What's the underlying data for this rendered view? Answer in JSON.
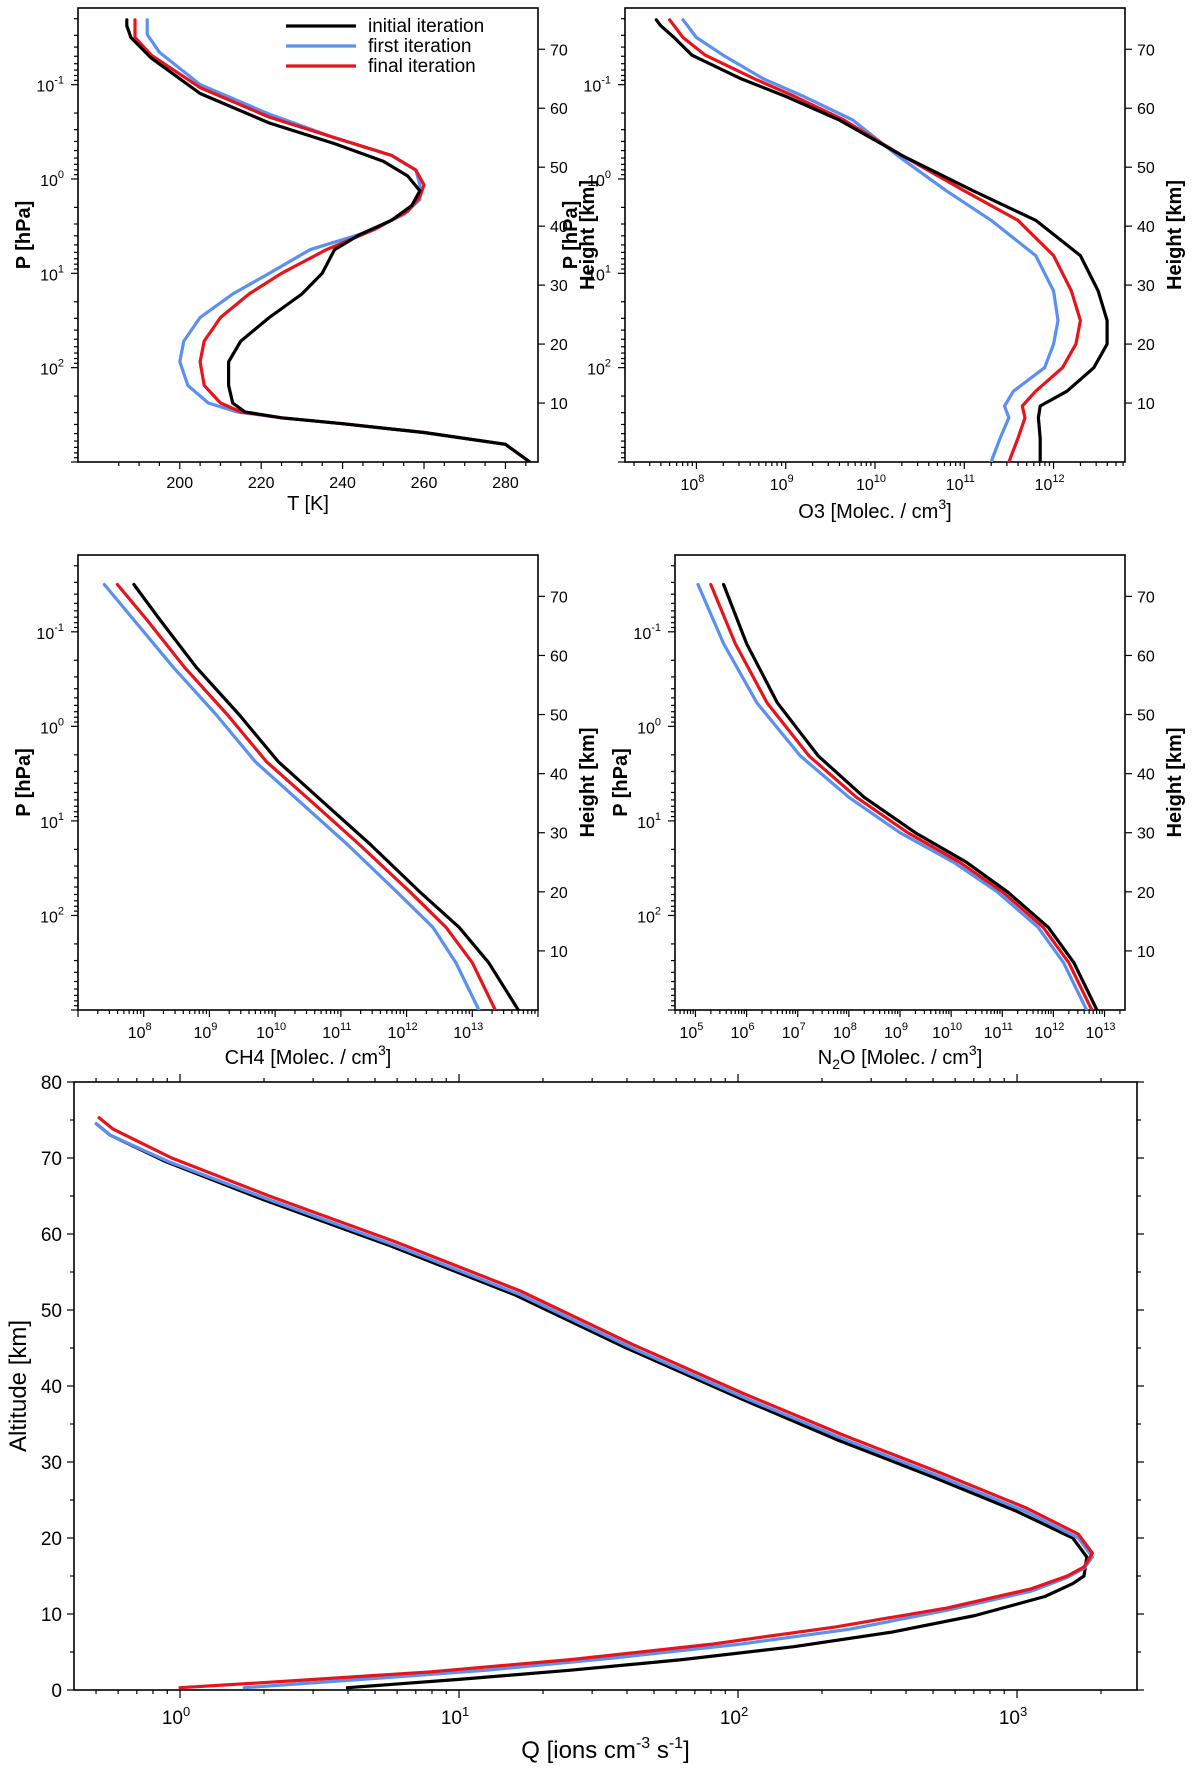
{
  "colors": {
    "initial": "#000000",
    "first": "#5b8ff0",
    "final": "#e8141c"
  },
  "legend": {
    "entries": [
      "initial iteration",
      "first iteration",
      "final iteration"
    ]
  },
  "chart_data": [
    {
      "id": "temperature",
      "type": "line",
      "xscale": "linear",
      "xlim": [
        175,
        288
      ],
      "xticks": [
        200,
        220,
        240,
        260,
        280
      ],
      "xtick_labels": [
        "200",
        "220",
        "240",
        "260",
        "280"
      ],
      "xlabel": "T [K]",
      "ylabel_left": "P [hPa]",
      "ylabel_right": "Height [km]",
      "left_ticks": [
        {
          "value": 0.1,
          "base": "10",
          "exp": "-1"
        },
        {
          "value": 1,
          "base": "10",
          "exp": "0"
        },
        {
          "value": 10,
          "base": "10",
          "exp": "1"
        },
        {
          "value": 100,
          "base": "10",
          "exp": "2"
        }
      ],
      "right_ticks": [
        10,
        20,
        30,
        40,
        50,
        60,
        70
      ],
      "height_range_km": [
        0,
        75
      ],
      "series": [
        {
          "name": "initial iteration",
          "key": "initial",
          "x": [
            286,
            280,
            260,
            240,
            225,
            216,
            213,
            212,
            212,
            215,
            222,
            230,
            235,
            238,
            244,
            252,
            257,
            259,
            256,
            250,
            238,
            222,
            205,
            193,
            188,
            187,
            187
          ],
          "h": [
            0,
            3,
            5,
            6.5,
            7.5,
            8.5,
            10,
            13,
            17,
            20.5,
            24.5,
            28.5,
            32,
            36,
            38.5,
            41,
            43.5,
            46,
            48.5,
            51,
            54,
            57.5,
            62.5,
            68.5,
            72,
            74,
            75
          ]
        },
        {
          "name": "first iteration",
          "key": "first",
          "x": [
            286,
            280,
            260,
            240,
            225,
            214,
            207,
            202,
            200,
            201,
            205,
            213,
            222,
            232,
            246,
            255,
            259,
            259,
            258,
            252,
            238,
            222,
            205,
            195,
            192,
            192,
            192
          ],
          "h": [
            0,
            3,
            5,
            6.5,
            7.5,
            8.5,
            10,
            13,
            17,
            20.5,
            24.5,
            28.5,
            32,
            36,
            39,
            42,
            44.5,
            47,
            49.5,
            52,
            55,
            59,
            64,
            69.5,
            72.5,
            74,
            75
          ]
        },
        {
          "name": "final iteration",
          "key": "final",
          "x": [
            286,
            280,
            260,
            240,
            225,
            215,
            210,
            206,
            205,
            206,
            210,
            217,
            225,
            236,
            248,
            256,
            259,
            260,
            258,
            252,
            238,
            222,
            205,
            193,
            189,
            189,
            189
          ],
          "h": [
            0,
            3,
            5,
            6.5,
            7.5,
            8.5,
            10,
            13,
            17,
            20.5,
            24.5,
            28.5,
            32,
            36,
            39.5,
            42.5,
            45,
            47,
            49.5,
            52,
            55,
            58.5,
            63.5,
            69,
            72,
            74,
            75
          ]
        }
      ]
    },
    {
      "id": "ozone",
      "type": "line",
      "xscale": "log",
      "xlim_log10": [
        7.2,
        12.8
      ],
      "xticks_exp": [
        8,
        9,
        10,
        11,
        12
      ],
      "xlabel_prefix": "O3 [Molec. / cm",
      "xlabel_sup": "3",
      "xlabel_suffix": "]",
      "ylabel_left": "P [hPa]",
      "ylabel_right": "Height [km]",
      "left_ticks": [
        {
          "value": 0.1,
          "base": "10",
          "exp": "-1"
        },
        {
          "value": 1,
          "base": "10",
          "exp": "0"
        },
        {
          "value": 10,
          "base": "10",
          "exp": "1"
        },
        {
          "value": 100,
          "base": "10",
          "exp": "2"
        }
      ],
      "right_ticks": [
        10,
        20,
        30,
        40,
        50,
        60,
        70
      ],
      "height_range_km": [
        0,
        75
      ],
      "series": [
        {
          "name": "initial iteration",
          "key": "initial",
          "log10x": [
            11.85,
            11.85,
            11.83,
            11.85,
            12.15,
            12.45,
            12.6,
            12.6,
            12.5,
            12.3,
            11.8,
            11.1,
            10.3,
            9.6,
            9.0,
            8.5,
            7.95,
            7.75,
            7.6,
            7.55
          ],
          "h": [
            0,
            4,
            7.5,
            9.5,
            12,
            16,
            20,
            24,
            29,
            35,
            41,
            46,
            52,
            58,
            62,
            65,
            69,
            72,
            74,
            75
          ]
        },
        {
          "name": "first iteration",
          "key": "first",
          "log10x": [
            11.3,
            11.4,
            11.5,
            11.45,
            11.55,
            11.9,
            12.0,
            12.05,
            12.0,
            11.8,
            11.3,
            10.8,
            10.25,
            9.75,
            9.2,
            8.75,
            8.3,
            8.0,
            7.9,
            7.85
          ],
          "h": [
            0,
            4,
            7.5,
            9.5,
            12,
            16,
            20,
            24,
            29,
            35,
            41,
            46,
            52,
            58,
            62,
            65,
            69,
            72,
            74,
            75
          ]
        },
        {
          "name": "final iteration",
          "key": "final",
          "log10x": [
            11.5,
            11.6,
            11.68,
            11.65,
            11.8,
            12.1,
            12.25,
            12.3,
            12.2,
            12.0,
            11.6,
            11.0,
            10.3,
            9.65,
            9.1,
            8.65,
            8.1,
            7.85,
            7.75,
            7.7
          ],
          "h": [
            0,
            4,
            7.5,
            9.5,
            12,
            16,
            20,
            24,
            29,
            35,
            41,
            46,
            52,
            58,
            62,
            65,
            69,
            72,
            74,
            75
          ]
        }
      ]
    },
    {
      "id": "methane",
      "type": "line",
      "xscale": "log",
      "xlim_log10": [
        7.0,
        14.0
      ],
      "xticks_exp": [
        8,
        9,
        10,
        11,
        12,
        13
      ],
      "xlabel_prefix": "CH4 [Molec. / cm",
      "xlabel_sup": "3",
      "xlabel_suffix": "]",
      "ylabel_left": "P [hPa]",
      "ylabel_right": "Height [km]",
      "left_ticks": [
        {
          "value": 0.1,
          "base": "10",
          "exp": "-1"
        },
        {
          "value": 1,
          "base": "10",
          "exp": "0"
        },
        {
          "value": 10,
          "base": "10",
          "exp": "1"
        },
        {
          "value": 100,
          "base": "10",
          "exp": "2"
        }
      ],
      "right_ticks": [
        10,
        20,
        30,
        40,
        50,
        60,
        70
      ],
      "height_range_km": [
        0,
        75
      ],
      "series": [
        {
          "name": "initial iteration",
          "key": "initial",
          "log10x": [
            13.7,
            13.25,
            12.8,
            12.2,
            11.45,
            10.75,
            10.05,
            9.45,
            8.8,
            8.25,
            7.85
          ],
          "h": [
            0,
            8,
            14,
            20,
            28,
            35,
            42,
            50,
            58,
            66,
            72
          ]
        },
        {
          "name": "first iteration",
          "key": "first",
          "log10x": [
            13.1,
            12.75,
            12.4,
            11.85,
            11.1,
            10.4,
            9.7,
            9.1,
            8.45,
            7.85,
            7.4
          ],
          "h": [
            0,
            8,
            14,
            20,
            28,
            35,
            42,
            50,
            58,
            66,
            72
          ]
        },
        {
          "name": "final iteration",
          "key": "final",
          "log10x": [
            13.35,
            13.0,
            12.6,
            12.05,
            11.28,
            10.58,
            9.87,
            9.27,
            8.62,
            8.05,
            7.6
          ],
          "h": [
            0,
            8,
            14,
            20,
            28,
            35,
            42,
            50,
            58,
            66,
            72
          ]
        }
      ]
    },
    {
      "id": "nitrous_oxide",
      "type": "line",
      "xscale": "log",
      "xlim_log10": [
        4.6,
        13.4
      ],
      "xticks_exp": [
        5,
        6,
        7,
        8,
        9,
        10,
        11,
        12,
        13
      ],
      "xlabel_prefix": "N",
      "xlabel_sub": "2",
      "xlabel_mid": "O [Molec. / cm",
      "xlabel_sup": "3",
      "xlabel_suffix": "]",
      "ylabel_left": "P [hPa]",
      "ylabel_right": "Height [km]",
      "left_ticks": [
        {
          "value": 0.1,
          "base": "10",
          "exp": "-1"
        },
        {
          "value": 1,
          "base": "10",
          "exp": "0"
        },
        {
          "value": 10,
          "base": "10",
          "exp": "1"
        },
        {
          "value": 100,
          "base": "10",
          "exp": "2"
        }
      ],
      "right_ticks": [
        10,
        20,
        30,
        40,
        50,
        60,
        70
      ],
      "height_range_km": [
        0,
        75
      ],
      "series": [
        {
          "name": "initial iteration",
          "key": "initial",
          "log10x": [
            12.85,
            12.4,
            11.9,
            11.1,
            10.3,
            9.3,
            8.3,
            7.4,
            6.6,
            6.0,
            5.55
          ],
          "h": [
            0,
            8,
            14,
            20,
            25,
            30,
            36,
            43,
            52,
            62,
            72
          ]
        },
        {
          "name": "first iteration",
          "key": "first",
          "log10x": [
            12.65,
            12.2,
            11.7,
            10.9,
            10.05,
            9.0,
            8.0,
            7.05,
            6.2,
            5.55,
            5.05
          ],
          "h": [
            0,
            8,
            14,
            20,
            25,
            30,
            36,
            43,
            52,
            62,
            72
          ]
        },
        {
          "name": "final iteration",
          "key": "final",
          "log10x": [
            12.75,
            12.3,
            11.8,
            11.0,
            10.17,
            9.15,
            8.15,
            7.22,
            6.4,
            5.78,
            5.3
          ],
          "h": [
            0,
            8,
            14,
            20,
            25,
            30,
            36,
            43,
            52,
            62,
            72
          ]
        }
      ]
    },
    {
      "id": "ionization",
      "type": "line",
      "xscale": "log",
      "xlim_log10": [
        -0.38,
        3.43
      ],
      "xticks_exp": [
        0,
        1,
        2,
        3
      ],
      "xlabel_prefix": "Q [ions cm",
      "xlabel_sup1": "-3",
      "xlabel_mid": " s",
      "xlabel_sup2": "-1",
      "xlabel_suffix": "]",
      "ylabel": "Altitude [km]",
      "ylim": [
        0,
        80
      ],
      "yticks": [
        0,
        10,
        20,
        30,
        40,
        50,
        60,
        70,
        80
      ],
      "series": [
        {
          "name": "initial iteration",
          "key": "initial",
          "log10x": [
            0.6,
            1.0,
            1.4,
            1.8,
            2.2,
            2.55,
            2.85,
            3.1,
            3.2,
            3.24,
            3.25,
            3.2,
            3.0,
            2.7,
            2.35,
            2.0,
            1.6,
            1.2,
            0.75,
            0.3,
            -0.05,
            -0.25,
            -0.3
          ],
          "y": [
            0.3,
            1.4,
            2.6,
            4.0,
            5.7,
            7.6,
            9.8,
            12.3,
            14.0,
            15.0,
            17.5,
            20.0,
            23.5,
            28.0,
            33.0,
            38.5,
            45.0,
            52.0,
            58.5,
            64.5,
            69.5,
            73.0,
            74.5
          ]
        },
        {
          "name": "first iteration",
          "key": "first",
          "log10x": [
            0.23,
            0.65,
            1.1,
            1.55,
            2.0,
            2.4,
            2.75,
            3.05,
            3.18,
            3.24,
            3.27,
            3.22,
            3.03,
            2.73,
            2.38,
            2.02,
            1.62,
            1.22,
            0.77,
            0.32,
            -0.04,
            -0.25,
            -0.3
          ],
          "y": [
            0.3,
            1.4,
            2.6,
            4.2,
            6.0,
            8.0,
            10.5,
            13.0,
            14.8,
            16.0,
            17.5,
            20.0,
            23.5,
            28.0,
            33.0,
            38.5,
            45.0,
            52.0,
            58.5,
            64.5,
            69.5,
            73.0,
            74.5
          ]
        },
        {
          "name": "final iteration",
          "key": "final",
          "log10x": [
            0.0,
            0.4,
            0.9,
            1.4,
            1.9,
            2.35,
            2.75,
            3.05,
            3.18,
            3.24,
            3.27,
            3.22,
            3.03,
            2.73,
            2.38,
            2.02,
            1.62,
            1.22,
            0.77,
            0.32,
            -0.03,
            -0.24,
            -0.29
          ],
          "y": [
            0.3,
            1.2,
            2.4,
            4.0,
            6.0,
            8.3,
            10.8,
            13.3,
            15.0,
            16.2,
            18.0,
            20.5,
            24.0,
            28.5,
            33.5,
            39.0,
            45.5,
            52.5,
            59.0,
            65.0,
            70.0,
            73.8,
            75.3
          ]
        }
      ]
    }
  ]
}
